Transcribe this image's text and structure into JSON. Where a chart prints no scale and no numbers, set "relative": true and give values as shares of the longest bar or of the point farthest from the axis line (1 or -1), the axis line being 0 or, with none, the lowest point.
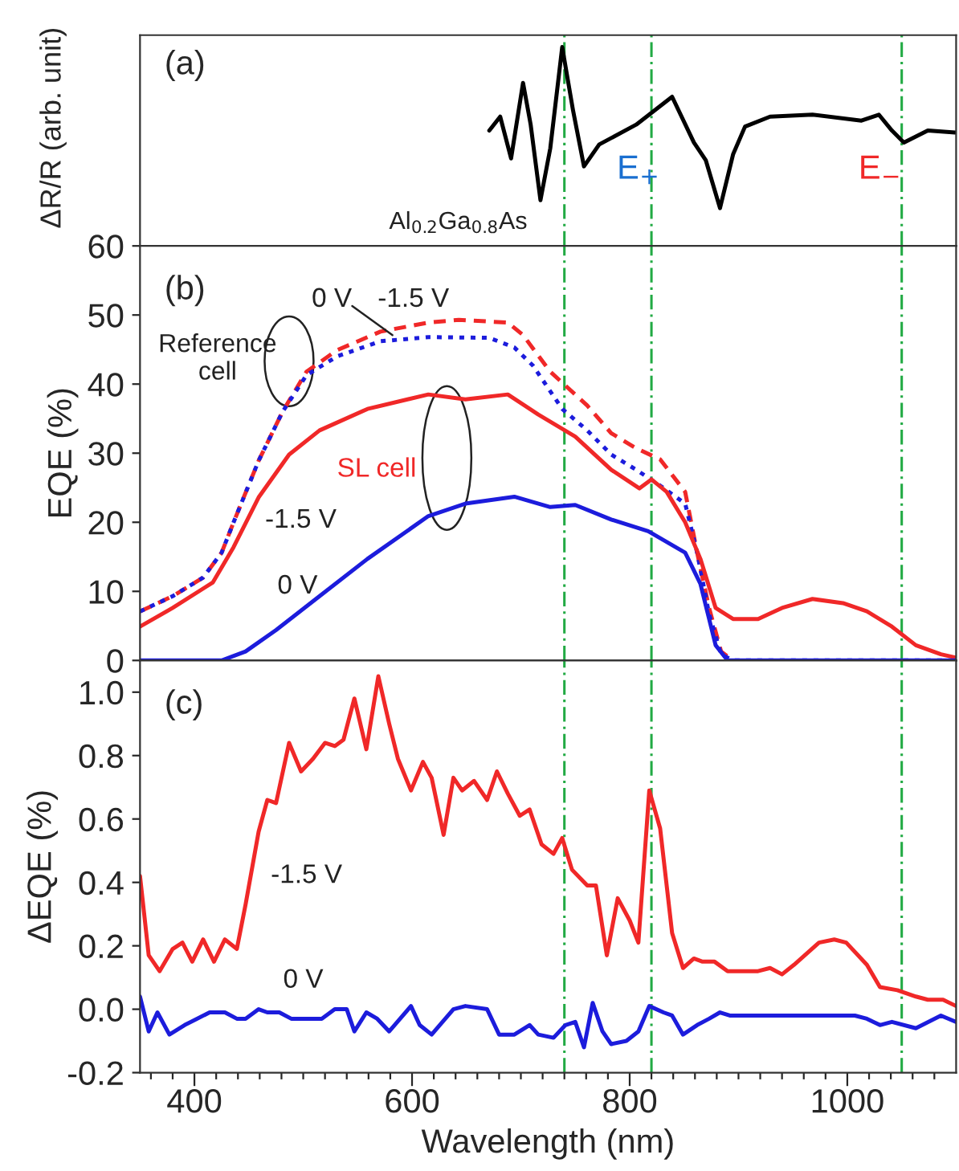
{
  "chart_data": [
    {
      "type": "line",
      "relative": true,
      "ylabel": "ΔR/R (arb. unit)",
      "xlim": [
        350,
        1100
      ],
      "tick_labels": false,
      "series": [
        {
          "color": "#000000",
          "line_style": "solid",
          "x": [
            671,
            681,
            691,
            702,
            709,
            718,
            727,
            738,
            748,
            758,
            772,
            806,
            839,
            859,
            870,
            883,
            895,
            906,
            929,
            968,
            1013,
            1029,
            1041,
            1052,
            1074,
            1099
          ],
          "values": [
            0.58,
            0.65,
            0.44,
            0.82,
            0.61,
            0.23,
            0.49,
            1.0,
            0.68,
            0.4,
            0.51,
            0.61,
            0.75,
            0.52,
            0.43,
            0.19,
            0.46,
            0.6,
            0.65,
            0.66,
            0.63,
            0.66,
            0.58,
            0.52,
            0.58,
            0.57
          ]
        }
      ],
      "ref_lines": [
        {
          "axis": "x",
          "value": 740,
          "color": "#22aa44",
          "line_style": "dashdot"
        },
        {
          "axis": "x",
          "value": 820,
          "color": "#22aa44",
          "line_style": "dashdot"
        },
        {
          "axis": "x",
          "value": 1050,
          "color": "#22aa44",
          "line_style": "dashdot"
        }
      ],
      "annotations": [
        "(a)",
        "Al$_{0.2}$Ga$_{0.8}$As",
        "E$_{+}$",
        "E$_{−}$"
      ]
    },
    {
      "type": "line",
      "ylabel": "EQE (%)",
      "xlim": [
        350,
        1100
      ],
      "ylim": [
        0,
        60
      ],
      "yticks": [
        0,
        10,
        20,
        30,
        40,
        50,
        60
      ],
      "tick_labels": "y",
      "series": [
        {
          "color": "#f02828",
          "line_style": "dashed",
          "x": [
            350,
            380,
            408,
            425,
            436,
            459,
            481,
            503,
            531,
            571,
            615,
            643,
            688,
            702,
            727,
            761,
            783,
            806,
            828,
            851,
            862,
            873,
            884,
            895
          ],
          "values": [
            7.1,
            9.3,
            12.0,
            15.6,
            20.0,
            28.9,
            36.0,
            41.8,
            44.9,
            47.6,
            48.9,
            49.3,
            48.9,
            47.1,
            41.8,
            36.9,
            32.9,
            30.7,
            29.1,
            24.4,
            15.6,
            7.6,
            1.3,
            0
          ]
        },
        {
          "color": "#1c1cdc",
          "line_style": "dotted",
          "x": [
            350,
            380,
            408,
            425,
            436,
            459,
            481,
            503,
            531,
            571,
            615,
            671,
            694,
            711,
            738,
            761,
            783,
            806,
            828,
            851,
            862,
            873,
            884,
            895,
            1100
          ],
          "values": [
            7.1,
            9.3,
            12.0,
            15.6,
            20.0,
            28.9,
            36.0,
            41.3,
            44.0,
            46.2,
            46.8,
            46.7,
            45.3,
            42.7,
            36.4,
            33.3,
            29.8,
            27.6,
            25.3,
            22.7,
            15.6,
            6.7,
            0.9,
            0,
            0
          ]
        },
        {
          "color": "#f02828",
          "line_style": "solid",
          "x": [
            350,
            380,
            417,
            436,
            459,
            487,
            515,
            559,
            615,
            649,
            688,
            716,
            750,
            783,
            809,
            820,
            834,
            851,
            865,
            879,
            895,
            918,
            940,
            968,
            996,
            1018,
            1041,
            1063,
            1086,
            1100
          ],
          "values": [
            4.9,
            7.6,
            11.3,
            16.4,
            23.6,
            29.8,
            33.3,
            36.4,
            38.5,
            37.8,
            38.5,
            35.6,
            32.4,
            27.6,
            24.9,
            26.2,
            24.4,
            20.0,
            14.7,
            7.6,
            6.0,
            6.0,
            7.6,
            8.9,
            8.3,
            7.1,
            4.9,
            2.2,
            0.9,
            0.4
          ]
        },
        {
          "color": "#1c1cdc",
          "line_style": "solid",
          "x": [
            350,
            425,
            447,
            475,
            515,
            559,
            615,
            649,
            694,
            727,
            750,
            783,
            817,
            851,
            865,
            879,
            890,
            1100
          ],
          "values": [
            0,
            0,
            1.3,
            4.4,
            9.3,
            14.7,
            20.9,
            22.7,
            23.7,
            22.2,
            22.5,
            20.4,
            18.7,
            15.6,
            11.1,
            2.2,
            0,
            0
          ]
        }
      ],
      "ref_lines": [
        {
          "axis": "x",
          "value": 740,
          "color": "#22aa44",
          "line_style": "dashdot"
        },
        {
          "axis": "x",
          "value": 820,
          "color": "#22aa44",
          "line_style": "dashdot"
        },
        {
          "axis": "x",
          "value": 1050,
          "color": "#22aa44",
          "line_style": "dashdot"
        }
      ],
      "annotations": [
        "(b)",
        "0 V",
        "-1.5 V",
        "Reference\ncell",
        "SL cell",
        "-1.5 V",
        "0 V"
      ]
    },
    {
      "type": "line",
      "ylabel": "ΔEQE (%)",
      "xlabel": "Wavelength (nm)",
      "xlim": [
        350,
        1100
      ],
      "ylim": [
        -0.2,
        1.1
      ],
      "xticks": [
        {
          "value": 360,
          "label": null
        },
        {
          "value": 380,
          "label": null
        },
        400,
        {
          "value": 420,
          "label": null
        },
        {
          "value": 440,
          "label": null
        },
        {
          "value": 460,
          "label": null
        },
        {
          "value": 480,
          "label": null
        },
        {
          "value": 500,
          "label": null
        },
        {
          "value": 520,
          "label": null
        },
        {
          "value": 540,
          "label": null
        },
        {
          "value": 560,
          "label": null
        },
        {
          "value": 580,
          "label": null
        },
        600,
        {
          "value": 620,
          "label": null
        },
        {
          "value": 640,
          "label": null
        },
        {
          "value": 660,
          "label": null
        },
        {
          "value": 680,
          "label": null
        },
        {
          "value": 700,
          "label": null
        },
        {
          "value": 720,
          "label": null
        },
        {
          "value": 740,
          "label": null
        },
        {
          "value": 760,
          "label": null
        },
        {
          "value": 780,
          "label": null
        },
        800,
        {
          "value": 820,
          "label": null
        },
        {
          "value": 840,
          "label": null
        },
        {
          "value": 860,
          "label": null
        },
        {
          "value": 880,
          "label": null
        },
        {
          "value": 900,
          "label": null
        },
        {
          "value": 920,
          "label": null
        },
        {
          "value": 940,
          "label": null
        },
        {
          "value": 960,
          "label": null
        },
        {
          "value": 980,
          "label": null
        },
        1000,
        {
          "value": 1020,
          "label": null
        },
        {
          "value": 1040,
          "label": null
        },
        {
          "value": 1060,
          "label": null
        },
        {
          "value": 1080,
          "label": null
        }
      ],
      "yticks": [
        {
          "value": -0.2,
          "label": "-0.2"
        },
        {
          "value": 0.0,
          "label": "0.0"
        },
        {
          "value": 0.2,
          "label": "0.2"
        },
        {
          "value": 0.4,
          "label": "0.4"
        },
        {
          "value": 0.6,
          "label": "0.6"
        },
        {
          "value": 0.8,
          "label": "0.8"
        },
        {
          "value": 1.0,
          "label": "1.0"
        }
      ],
      "series": [
        {
          "color": "#f02828",
          "line_style": "solid",
          "x": [
            350,
            358,
            368,
            380,
            389,
            398,
            408,
            418,
            428,
            439,
            447,
            459,
            467,
            475,
            487,
            498,
            509,
            520,
            529,
            537,
            547,
            558,
            569,
            579,
            587,
            599,
            610,
            618,
            629,
            638,
            646,
            657,
            669,
            678,
            688,
            699,
            708,
            719,
            730,
            738,
            747,
            761,
            769,
            779,
            789,
            800,
            808,
            818,
            828,
            839,
            849,
            859,
            867,
            878,
            890,
            918,
            929,
            940,
            951,
            974,
            988,
            999,
            1018,
            1030,
            1046,
            1063,
            1074,
            1088,
            1100
          ],
          "values": [
            0.42,
            0.17,
            0.12,
            0.19,
            0.21,
            0.15,
            0.22,
            0.15,
            0.22,
            0.19,
            0.33,
            0.56,
            0.66,
            0.65,
            0.84,
            0.75,
            0.79,
            0.84,
            0.83,
            0.85,
            0.98,
            0.82,
            1.05,
            0.9,
            0.79,
            0.69,
            0.78,
            0.73,
            0.55,
            0.73,
            0.69,
            0.72,
            0.66,
            0.75,
            0.68,
            0.61,
            0.63,
            0.52,
            0.49,
            0.54,
            0.44,
            0.39,
            0.39,
            0.17,
            0.35,
            0.28,
            0.21,
            0.69,
            0.57,
            0.24,
            0.13,
            0.16,
            0.15,
            0.15,
            0.12,
            0.12,
            0.13,
            0.11,
            0.14,
            0.21,
            0.22,
            0.21,
            0.14,
            0.07,
            0.06,
            0.04,
            0.03,
            0.03,
            0.01
          ]
        },
        {
          "color": "#1c1cdc",
          "line_style": "solid",
          "x": [
            350,
            358,
            366,
            377,
            391,
            414,
            428,
            439,
            447,
            459,
            467,
            478,
            489,
            517,
            529,
            540,
            547,
            558,
            568,
            579,
            599,
            607,
            618,
            638,
            649,
            669,
            680,
            694,
            708,
            716,
            730,
            741,
            750,
            758,
            766,
            775,
            783,
            797,
            808,
            818,
            831,
            839,
            849,
            862,
            873,
            883,
            892,
            918,
            962,
            985,
            1007,
            1018,
            1030,
            1041,
            1063,
            1086,
            1100
          ],
          "values": [
            0.04,
            -0.07,
            -0.01,
            -0.08,
            -0.05,
            -0.01,
            -0.01,
            -0.03,
            -0.03,
            0.0,
            -0.01,
            -0.01,
            -0.03,
            -0.03,
            0.0,
            0.0,
            -0.07,
            -0.01,
            -0.03,
            -0.07,
            0.01,
            -0.05,
            -0.08,
            0.0,
            0.01,
            0.0,
            -0.08,
            -0.08,
            -0.05,
            -0.08,
            -0.09,
            -0.05,
            -0.04,
            -0.12,
            0.02,
            -0.07,
            -0.11,
            -0.1,
            -0.07,
            0.01,
            -0.01,
            -0.02,
            -0.08,
            -0.05,
            -0.03,
            -0.01,
            -0.02,
            -0.02,
            -0.02,
            -0.02,
            -0.02,
            -0.03,
            -0.05,
            -0.04,
            -0.06,
            -0.02,
            -0.04
          ]
        }
      ],
      "ref_lines": [
        {
          "axis": "x",
          "value": 740,
          "color": "#22aa44",
          "line_style": "dashdot"
        },
        {
          "axis": "x",
          "value": 820,
          "color": "#22aa44",
          "line_style": "dashdot"
        },
        {
          "axis": "x",
          "value": 1050,
          "color": "#22aa44",
          "line_style": "dashdot"
        }
      ],
      "annotations": [
        "(c)",
        "-1.5 V",
        "0 V"
      ]
    }
  ]
}
